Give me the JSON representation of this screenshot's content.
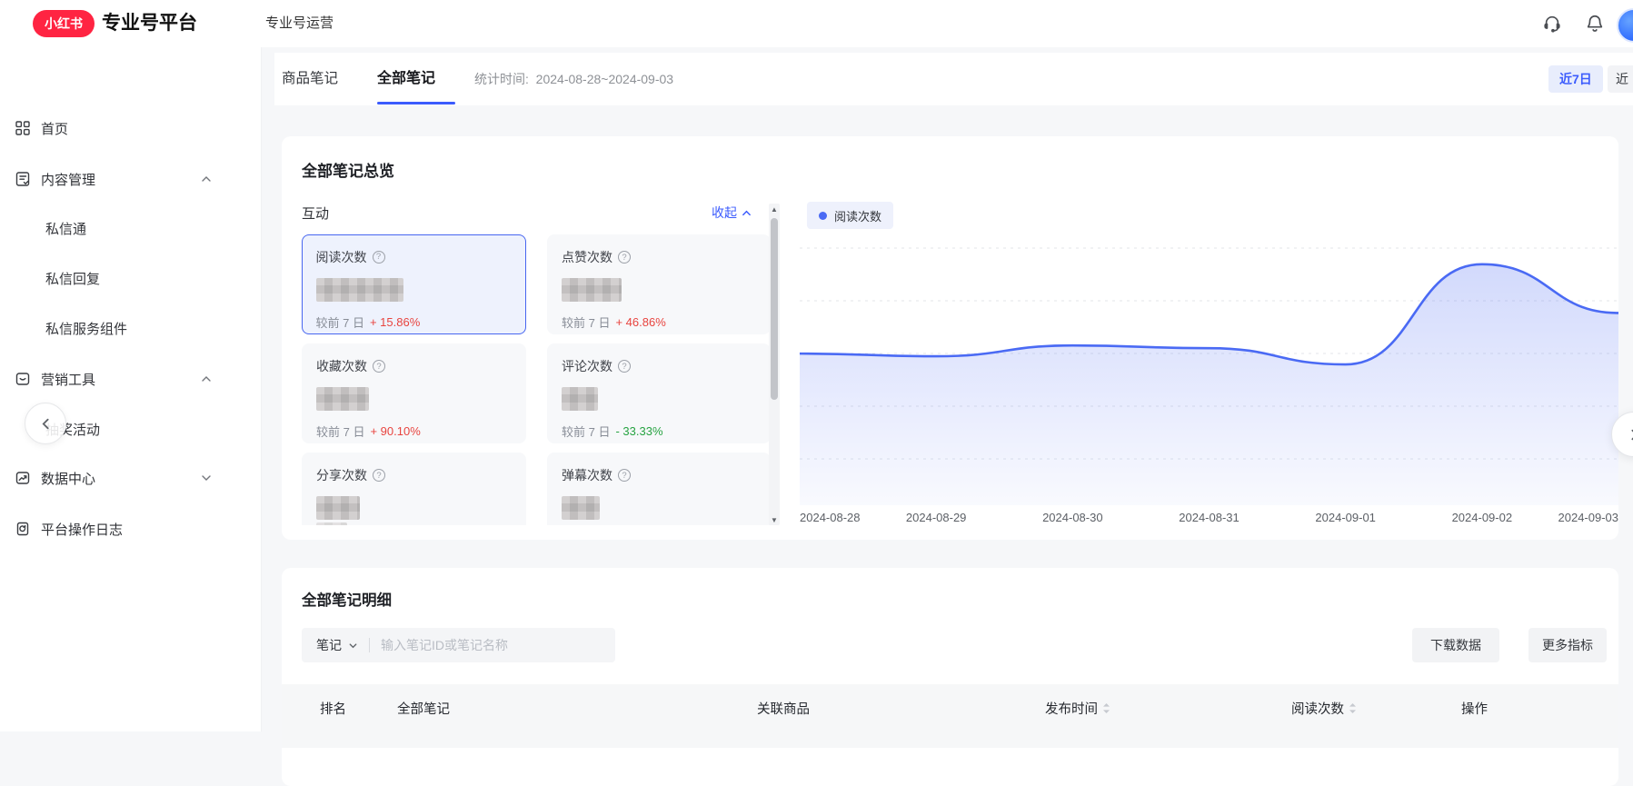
{
  "header": {
    "logo_text": "小红书",
    "app_title": "专业号平台",
    "nav_item": "专业号运营"
  },
  "sidebar": {
    "items": [
      {
        "label": "首页",
        "icon": "grid-icon"
      },
      {
        "label": "内容管理",
        "icon": "content-icon",
        "expanded": true
      },
      {
        "label": "私信通",
        "sub": true
      },
      {
        "label": "私信回复",
        "sub": true
      },
      {
        "label": "私信服务组件",
        "sub": true
      },
      {
        "label": "营销工具",
        "icon": "marketing-icon",
        "expanded": true
      },
      {
        "label": "抽奖活动",
        "sub": true
      },
      {
        "label": "数据中心",
        "icon": "data-icon",
        "expanded": false
      },
      {
        "label": "平台操作日志",
        "icon": "log-icon"
      }
    ]
  },
  "toolbar": {
    "tabs": [
      {
        "label": "商品笔记",
        "active": false
      },
      {
        "label": "全部笔记",
        "active": true
      }
    ],
    "stat_time_label": "统计时间:",
    "stat_time_value": "2024-08-28~2024-09-03",
    "range_buttons": [
      {
        "label": "近7日",
        "active": true
      },
      {
        "label": "近",
        "active": false,
        "truncated": true
      }
    ]
  },
  "overview": {
    "title": "全部笔记总览",
    "group_label": "互动",
    "collapse_label": "收起",
    "metrics": [
      {
        "label": "阅读次数",
        "change_prefix": "较前 7 日",
        "change": "+ 15.86%",
        "direction": "up",
        "selected": true,
        "value_masked": true
      },
      {
        "label": "点赞次数",
        "change_prefix": "较前 7 日",
        "change": "+ 46.86%",
        "direction": "up",
        "selected": false,
        "value_masked": true
      },
      {
        "label": "收藏次数",
        "change_prefix": "较前 7 日",
        "change": "+ 90.10%",
        "direction": "up",
        "selected": false,
        "value_masked": true
      },
      {
        "label": "评论次数",
        "change_prefix": "较前 7 日",
        "change": "- 33.33%",
        "direction": "down",
        "selected": false,
        "value_masked": true
      },
      {
        "label": "分享次数",
        "change_prefix": "",
        "change": "",
        "direction": "",
        "selected": false,
        "value_masked": true
      },
      {
        "label": "弹幕次数",
        "change_prefix": "",
        "change": "",
        "direction": "",
        "selected": false,
        "value_masked": true
      }
    ]
  },
  "chart_data": {
    "type": "area",
    "title": "",
    "legend": [
      "阅读次数"
    ],
    "legend_position": "top-left",
    "grid": "dashed-horizontal",
    "x": [
      "2024-08-28",
      "2024-08-29",
      "2024-08-30",
      "2024-08-31",
      "2024-09-01",
      "2024-09-02",
      "2024-09-03"
    ],
    "series": [
      {
        "name": "阅读次数",
        "values": [
          56,
          55,
          59,
          58,
          52,
          89,
          71
        ]
      }
    ],
    "ylim": [
      0,
      100
    ],
    "y_axis_labels_visible": false,
    "colors": {
      "line": "#4a6af4",
      "fill_top": "rgba(93,120,245,0.28)",
      "fill_bottom": "rgba(93,120,245,0.04)"
    }
  },
  "details": {
    "title": "全部笔记明细",
    "filter_label": "笔记",
    "search_placeholder": "输入笔记ID或笔记名称",
    "download_label": "下载数据",
    "more_metrics_label": "更多指标",
    "columns": [
      {
        "label": "排名",
        "sortable": false
      },
      {
        "label": "全部笔记",
        "sortable": false
      },
      {
        "label": "关联商品",
        "sortable": false
      },
      {
        "label": "发布时间",
        "sortable": true
      },
      {
        "label": "阅读次数",
        "sortable": true
      },
      {
        "label": "操作",
        "sortable": false
      }
    ]
  },
  "colors": {
    "logo_red": "#ff2442",
    "accent_blue": "#3b5bfd",
    "up_red": "#e8443f",
    "down_green": "#27a342",
    "selected_card_border": "#4766f0",
    "selected_card_bg": "#eef2fd"
  }
}
